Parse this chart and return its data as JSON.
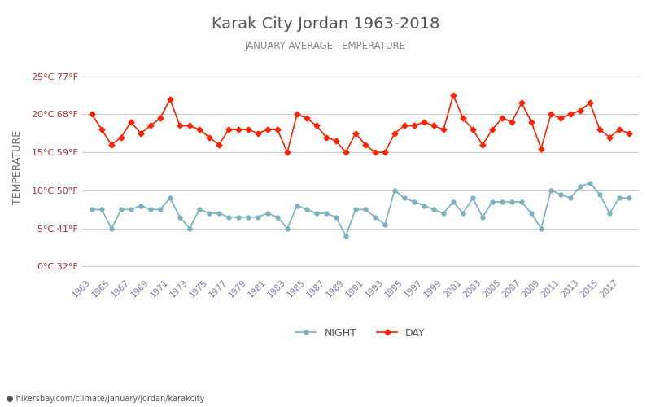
{
  "title": "Karak City Jordan 1963-2018",
  "subtitle": "JANUARY AVERAGE TEMPERATURE",
  "xlabel": "",
  "ylabel": "TEMPERATURE",
  "background_color": "#ffffff",
  "grid_color": "#cccccc",
  "title_color": "#555555",
  "subtitle_color": "#888888",
  "ylabel_color": "#7a6a6a",
  "ytick_color": "#aa3333",
  "xtick_color": "#7777aa",
  "day_color": "#ff2200",
  "night_color": "#7ab0bf",
  "years": [
    1963,
    1964,
    1965,
    1966,
    1967,
    1968,
    1969,
    1970,
    1971,
    1972,
    1973,
    1974,
    1975,
    1976,
    1977,
    1978,
    1979,
    1980,
    1981,
    1982,
    1983,
    1984,
    1985,
    1986,
    1987,
    1988,
    1989,
    1990,
    1991,
    1992,
    1993,
    1994,
    1995,
    1996,
    1997,
    1998,
    1999,
    2000,
    2001,
    2002,
    2003,
    2004,
    2005,
    2006,
    2007,
    2008,
    2009,
    2010,
    2011,
    2012,
    2013,
    2014,
    2015,
    2016,
    2017,
    2018
  ],
  "day_temps": [
    20.0,
    18.0,
    16.0,
    17.0,
    19.0,
    17.5,
    18.5,
    19.5,
    22.0,
    18.5,
    18.5,
    18.0,
    17.0,
    16.0,
    18.0,
    18.0,
    18.0,
    17.5,
    18.0,
    18.0,
    15.0,
    20.0,
    19.5,
    18.5,
    17.0,
    16.5,
    15.0,
    17.5,
    16.0,
    15.0,
    15.0,
    17.5,
    18.5,
    18.5,
    19.0,
    18.5,
    18.0,
    22.5,
    19.5,
    18.0,
    16.0,
    18.0,
    19.5,
    19.0,
    21.5,
    19.0,
    15.5,
    20.0,
    19.5,
    20.0,
    20.5,
    21.5,
    18.0,
    17.0,
    18.0,
    17.5
  ],
  "night_temps": [
    7.5,
    7.5,
    5.0,
    7.5,
    7.5,
    8.0,
    7.5,
    7.5,
    9.0,
    6.5,
    5.0,
    7.5,
    7.0,
    7.0,
    6.5,
    6.5,
    6.5,
    6.5,
    7.0,
    6.5,
    5.0,
    8.0,
    7.5,
    7.0,
    7.0,
    6.5,
    4.0,
    7.5,
    7.5,
    6.5,
    5.5,
    10.0,
    9.0,
    8.5,
    8.0,
    7.5,
    7.0,
    8.5,
    7.0,
    9.0,
    6.5,
    8.5,
    8.5,
    8.5,
    8.5,
    7.0,
    5.0,
    10.0,
    9.5,
    9.0,
    10.5,
    11.0,
    9.5,
    7.0,
    9.0,
    9.0
  ],
  "yticks_c": [
    0,
    5,
    10,
    15,
    20,
    25
  ],
  "yticks_f": [
    32,
    41,
    50,
    59,
    68,
    77
  ],
  "ylim": [
    -1,
    27
  ],
  "xtick_years": [
    1963,
    1965,
    1967,
    1969,
    1971,
    1973,
    1975,
    1977,
    1979,
    1981,
    1983,
    1985,
    1987,
    1989,
    1991,
    1993,
    1995,
    1997,
    1999,
    2001,
    2003,
    2005,
    2007,
    2009,
    2011,
    2013,
    2015,
    2017
  ],
  "footer": "hikersbay.com/climate/january/jordan/karakcity",
  "footer_color": "#555555",
  "legend_night": "NIGHT",
  "legend_day": "DAY"
}
